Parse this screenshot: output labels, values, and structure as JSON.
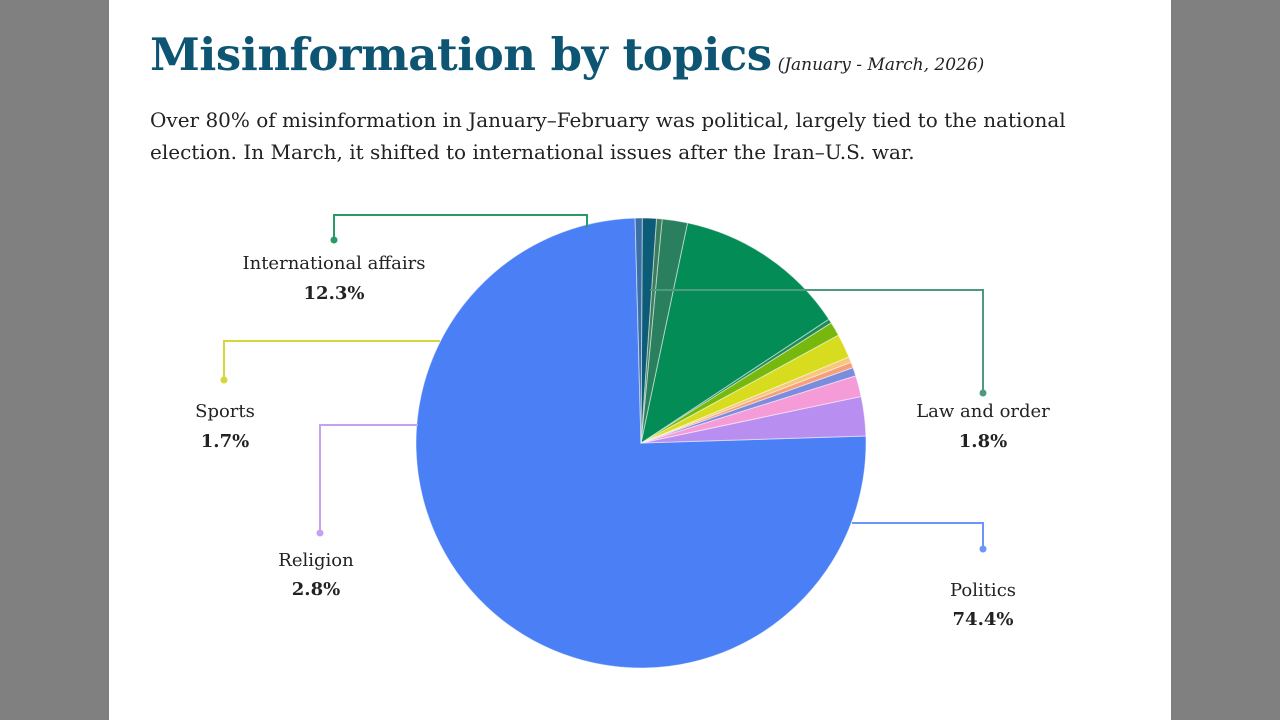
{
  "header": {
    "title": "Misinformation by topics",
    "date_range": "(January - March, 2026)",
    "subtitle": "Over 80% of misinformation in January–February was political, largely tied to the national election. In March, it shifted to international issues after the Iran–U.S. war."
  },
  "chart_data": {
    "type": "pie",
    "start_angle_deg": 91.5,
    "slices": [
      {
        "name": "Politics",
        "value": 74.4,
        "color": "#4a7ff5",
        "label": "74.4%"
      },
      {
        "name": "Religion",
        "value": 2.8,
        "color": "#b88ff0",
        "label": "2.8%"
      },
      {
        "name": "",
        "value": 1.5,
        "color": "#f59cd8"
      },
      {
        "name": "",
        "value": 0.6,
        "color": "#7b8cde"
      },
      {
        "name": "",
        "value": 0.4,
        "color": "#f5a07a"
      },
      {
        "name": "",
        "value": 0.4,
        "color": "#f7c77a"
      },
      {
        "name": "Sports",
        "value": 1.7,
        "color": "#d7dc1e",
        "label": "1.7%"
      },
      {
        "name": "",
        "value": 1.0,
        "color": "#77b80e"
      },
      {
        "name": "",
        "value": 0.3,
        "color": "#1e8a5a"
      },
      {
        "name": "International affairs",
        "value": 12.3,
        "color": "#038c55",
        "label": "12.3%"
      },
      {
        "name": "Law and order",
        "value": 1.8,
        "color": "#2a7f5f",
        "label": "1.8%"
      },
      {
        "name": "",
        "value": 0.4,
        "color": "#3c7d5e"
      },
      {
        "name": "",
        "value": 1.0,
        "color": "#0c5c78"
      },
      {
        "name": "",
        "value": 0.5,
        "color": "#3a6fa6"
      }
    ],
    "legend": "callout-labels"
  }
}
